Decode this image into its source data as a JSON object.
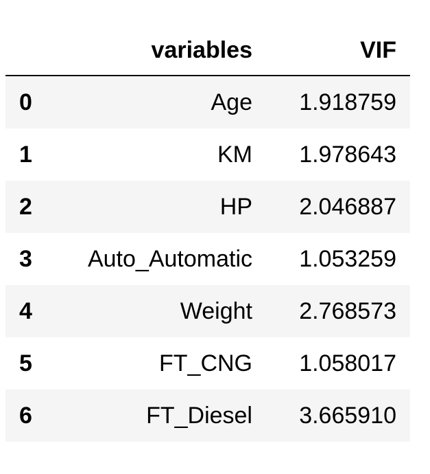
{
  "table": {
    "columns": [
      "variables",
      "VIF"
    ],
    "rows": [
      {
        "index": "0",
        "variable": "Age",
        "vif": "1.918759"
      },
      {
        "index": "1",
        "variable": "KM",
        "vif": "1.978643"
      },
      {
        "index": "2",
        "variable": "HP",
        "vif": "2.046887"
      },
      {
        "index": "3",
        "variable": "Auto_Automatic",
        "vif": "1.053259"
      },
      {
        "index": "4",
        "variable": "Weight",
        "vif": "2.768573"
      },
      {
        "index": "5",
        "variable": "FT_CNG",
        "vif": "1.058017"
      },
      {
        "index": "6",
        "variable": "FT_Diesel",
        "vif": "3.665910"
      }
    ],
    "colors": {
      "stripe": "#f5f5f5",
      "text": "#000000",
      "background": "#ffffff"
    }
  }
}
